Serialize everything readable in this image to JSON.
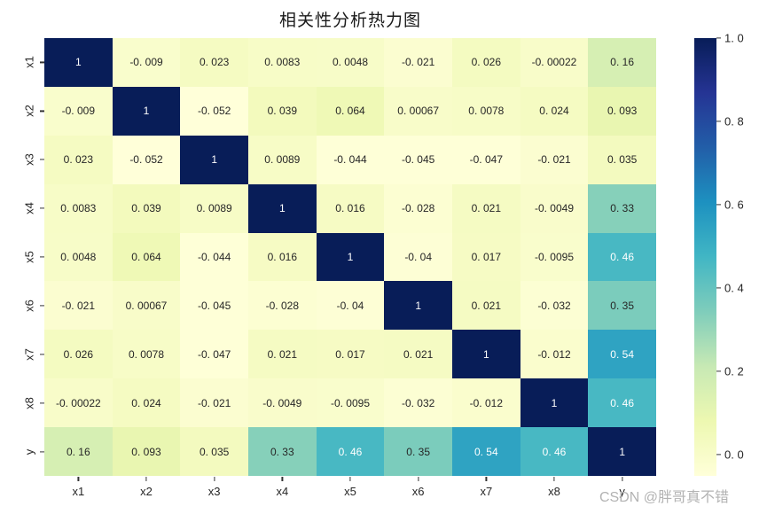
{
  "title": "相关性分析热力图",
  "watermark": "CSDN @胖哥真不错",
  "colors": {
    "background": "#ffffff",
    "title_text": "#1a1a1a",
    "tick_text": "#262626",
    "annotation_dark": "#262626",
    "annotation_light": "#ffffff",
    "watermark_text": "#b3b3b3"
  },
  "chart_data": {
    "type": "heatmap",
    "title": "相关性分析热力图",
    "x_tick_labels": [
      "x1",
      "x2",
      "x3",
      "x4",
      "x5",
      "x6",
      "x7",
      "x8",
      "y"
    ],
    "y_tick_labels": [
      "x1",
      "x2",
      "x3",
      "x4",
      "x5",
      "x6",
      "x7",
      "x8",
      "y"
    ],
    "matrix": [
      [
        1,
        -0.009,
        0.023,
        0.0083,
        0.0048,
        -0.021,
        0.026,
        -0.00022,
        0.16
      ],
      [
        -0.009,
        1,
        -0.052,
        0.039,
        0.064,
        0.00067,
        0.0078,
        0.024,
        0.093
      ],
      [
        0.023,
        -0.052,
        1,
        0.0089,
        -0.044,
        -0.045,
        -0.047,
        -0.021,
        0.035
      ],
      [
        0.0083,
        0.039,
        0.0089,
        1,
        0.016,
        -0.028,
        0.021,
        -0.0049,
        0.33
      ],
      [
        0.0048,
        0.064,
        -0.044,
        0.016,
        1,
        -0.04,
        0.017,
        -0.0095,
        0.46
      ],
      [
        -0.021,
        0.00067,
        -0.045,
        -0.028,
        -0.04,
        1,
        0.021,
        -0.032,
        0.35
      ],
      [
        0.026,
        0.0078,
        -0.047,
        0.021,
        0.017,
        0.021,
        1,
        -0.012,
        0.54
      ],
      [
        -0.00022,
        0.024,
        -0.021,
        -0.0049,
        -0.0095,
        -0.032,
        -0.012,
        1,
        0.46
      ],
      [
        0.16,
        0.093,
        0.035,
        0.33,
        0.46,
        0.35,
        0.54,
        0.46,
        1
      ]
    ],
    "vmin": -0.052,
    "vmax": 1.0,
    "annotations": true,
    "grid": false,
    "colormap": "YlGnBu",
    "colormap_stops": [
      "#ffffd9",
      "#edf8b1",
      "#c7e9b4",
      "#7fcdbb",
      "#41b6c4",
      "#1d91c0",
      "#225ea8",
      "#253494",
      "#081d58"
    ],
    "colorbar_position": "right",
    "colorbar_ticks": [
      "1.0",
      "0.8",
      "0.6",
      "0.4",
      "0.2",
      "0.0"
    ]
  }
}
